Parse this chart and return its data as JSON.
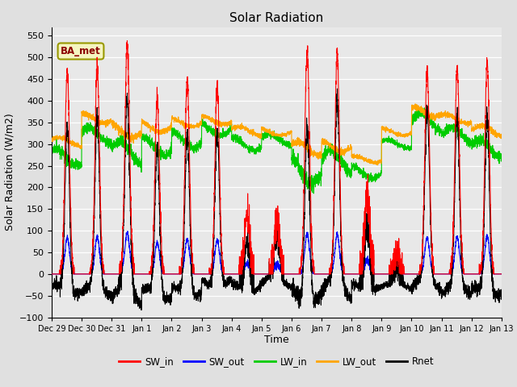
{
  "title": "Solar Radiation",
  "xlabel": "Time",
  "ylabel": "Solar Radiation (W/m2)",
  "ylim": [
    -100,
    570
  ],
  "background_color": "#e0e0e0",
  "plot_bg_color": "#e8e8e8",
  "annotation": "BA_met",
  "legend_entries": [
    "SW_in",
    "SW_out",
    "LW_in",
    "LW_out",
    "Rnet"
  ],
  "legend_colors": [
    "#ff0000",
    "#0000ff",
    "#00cc00",
    "#ffa500",
    "#000000"
  ],
  "xtick_labels": [
    "Dec 29",
    "Dec 30",
    "Dec 31",
    "Jan 1",
    "Jan 2",
    "Jan 3",
    "Jan 4",
    "Jan 5",
    "Jan 6",
    "Jan 7",
    "Jan 8",
    "Jan 9",
    "Jan 10",
    "Jan 11",
    "Jan 12",
    "Jan 13"
  ],
  "figsize": [
    6.4,
    4.8
  ],
  "dpi": 100
}
